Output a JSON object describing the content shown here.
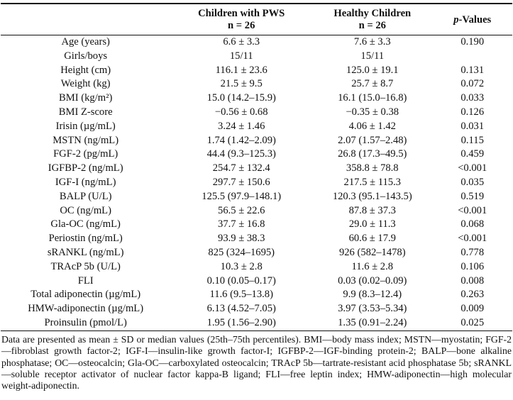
{
  "table": {
    "headers": {
      "parameter": "",
      "pws_line1": "Children with PWS",
      "pws_line2": "n = 26",
      "healthy_line1": "Healthy Children",
      "healthy_line2": "n = 26",
      "p_italic": "p",
      "p_rest": "-Values"
    },
    "rows": [
      {
        "label": "Age (years)",
        "pws": "6.6 ± 3.3",
        "healthy": "7.6 ± 3.3",
        "p": "0.190"
      },
      {
        "label": "Girls/boys",
        "pws": "15/11",
        "healthy": "15/11",
        "p": ""
      },
      {
        "label": "Height (cm)",
        "pws": "116.1 ± 23.6",
        "healthy": "125.0 ± 19.1",
        "p": "0.131"
      },
      {
        "label": "Weight (kg)",
        "pws": "21.5 ± 9.5",
        "healthy": "25.7 ± 8.7",
        "p": "0.072"
      },
      {
        "label": "BMI (kg/m²)",
        "pws": "15.0 (14.2–15.9)",
        "healthy": "16.1 (15.0–16.8)",
        "p": "0.033"
      },
      {
        "label": "BMI Z-score",
        "pws": "−0.56 ± 0.68",
        "healthy": "−0.35 ± 0.38",
        "p": "0.126"
      },
      {
        "label": "Irisin (µg/mL)",
        "pws": "3.24 ± 1.46",
        "healthy": "4.06 ± 1.42",
        "p": "0.031"
      },
      {
        "label": "MSTN (ng/mL)",
        "pws": "1.74 (1.42–2.09)",
        "healthy": "2.07 (1.57–2.48)",
        "p": "0.115"
      },
      {
        "label": "FGF-2 (pg/mL)",
        "pws": "44.4 (9.3–125.3)",
        "healthy": "26.8 (17.3–49.5)",
        "p": "0.459"
      },
      {
        "label": "IGFBP-2 (ng/mL)",
        "pws": "254.7 ± 132.4",
        "healthy": "358.8 ± 78.8",
        "p": "<0.001"
      },
      {
        "label": "IGF-I (ng/mL)",
        "pws": "297.7 ± 150.6",
        "healthy": "217.5 ± 115.3",
        "p": "0.035"
      },
      {
        "label": "BALP (U/L)",
        "pws": "125.5 (97.9–148.1)",
        "healthy": "120.3 (95.1–143.5)",
        "p": "0.519"
      },
      {
        "label": "OC (ng/mL)",
        "pws": "56.5 ± 22.6",
        "healthy": "87.8 ± 37.3",
        "p": "<0.001"
      },
      {
        "label": "Gla-OC (ng/mL)",
        "pws": "37.7 ± 16.8",
        "healthy": "29.0 ± 11.3",
        "p": "0.068"
      },
      {
        "label": "Periostin (ng/mL)",
        "pws": "93.9 ± 38.3",
        "healthy": "60.6 ± 17.9",
        "p": "<0.001"
      },
      {
        "label": "sRANKL (ng/mL)",
        "pws": "825 (324–1695)",
        "healthy": "926 (582–1478)",
        "p": "0.778"
      },
      {
        "label": "TRAcP 5b (U/L)",
        "pws": "10.3 ± 2.8",
        "healthy": "11.6 ± 2.8",
        "p": "0.106"
      },
      {
        "label": "FLI",
        "pws": "0.10 (0.05–0.17)",
        "healthy": "0.03 (0.02–0.09)",
        "p": "0.008"
      },
      {
        "label": "Total adiponectin (µg/mL)",
        "pws": "11.6 (9.5–13.8)",
        "healthy": "9.9 (8.3–12.4)",
        "p": "0.263"
      },
      {
        "label": "HMW-adiponectin (µg/mL)",
        "pws": "6.13 (4.52–7.05)",
        "healthy": "3.97 (3.53–5.34)",
        "p": "0.009"
      },
      {
        "label": "Proinsulin (pmol/L)",
        "pws": "1.95 (1.56–2.90)",
        "healthy": "1.35 (0.91–2.24)",
        "p": "0.025"
      }
    ]
  },
  "footnote": "Data are presented as mean ± SD or median values (25th–75th percentiles).  BMI—body mass index; MSTN—myostatin; FGF-2—fibroblast growth factor-2; IGF-I—insulin-like growth factor-I; IGFBP-2—IGF-binding protein-2; BALP—bone alkaline phosphatase; OC—osteocalcin; Gla-OC—carboxylated osteocalcin; TRAcP 5b—tartrate-resistant acid phosphatase 5b; sRANKL—soluble receptor activator of nuclear factor kappa-B ligand; FLI—free leptin index; HMW-adiponectin—high molecular weight-adiponectin.",
  "colors": {
    "text": "#111111",
    "background": "#ffffff",
    "rule": "#111111"
  }
}
